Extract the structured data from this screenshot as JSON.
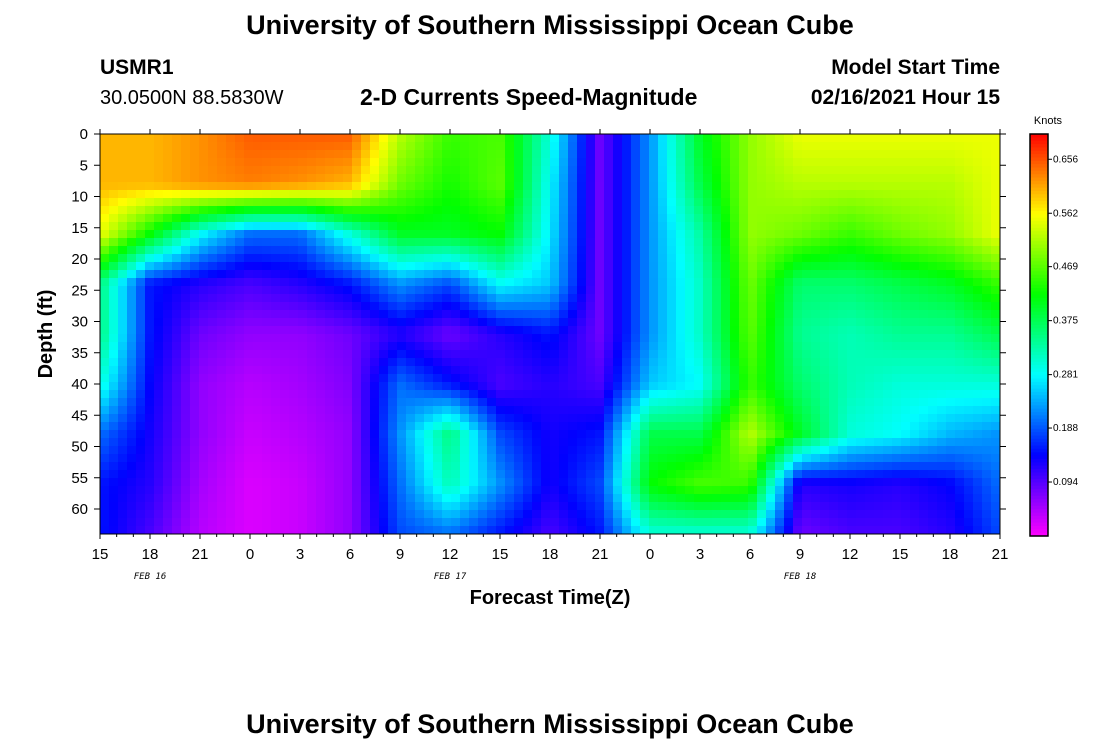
{
  "header": {
    "title": "University of Southern Mississippi Ocean Cube",
    "station": "USMR1",
    "coords": "30.0500N 88.5830W",
    "subtitle": "2-D Currents Speed-Magnitude",
    "model_label": "Model Start Time",
    "model_time": "02/16/2021 Hour 15"
  },
  "footer": {
    "title": "University of Southern Mississippi Ocean Cube"
  },
  "chart_data": {
    "type": "heatmap",
    "xlabel": "Forecast Time(Z)",
    "ylabel": "Depth (ft)",
    "x_ticks": [
      "15",
      "18",
      "21",
      "0",
      "3",
      "6",
      "9",
      "12",
      "15",
      "18",
      "21",
      "0",
      "3",
      "6",
      "9",
      "12",
      "15",
      "18",
      "21"
    ],
    "x_range_hours": [
      0,
      54
    ],
    "date_labels": [
      {
        "text": "FEB 16",
        "tick_index": 1
      },
      {
        "text": "FEB 17",
        "tick_index": 7
      },
      {
        "text": "FEB 18",
        "tick_index": 14
      }
    ],
    "y_ticks": [
      0,
      5,
      10,
      15,
      20,
      25,
      30,
      35,
      40,
      45,
      50,
      55,
      60
    ],
    "y_range": [
      0,
      64
    ],
    "y_inverted": true,
    "colorbar": {
      "label": "Knots",
      "ticks": [
        "0.656",
        "0.562",
        "0.469",
        "0.375",
        "0.281",
        "0.188",
        "0.094"
      ],
      "range": [
        0,
        0.7
      ]
    },
    "depths": [
      0,
      8,
      16,
      24,
      32,
      40,
      48,
      56,
      64
    ],
    "times_hours": [
      0,
      3,
      6,
      9,
      12,
      15,
      18,
      21,
      24,
      27,
      30,
      33,
      36,
      39,
      42,
      45,
      48,
      51,
      54
    ],
    "values": [
      [
        0.6,
        0.6,
        0.62,
        0.65,
        0.65,
        0.65,
        0.52,
        0.45,
        0.46,
        0.3,
        0.08,
        0.22,
        0.4,
        0.5,
        0.55,
        0.55,
        0.55,
        0.55,
        0.55
      ],
      [
        0.6,
        0.6,
        0.62,
        0.63,
        0.62,
        0.6,
        0.48,
        0.43,
        0.47,
        0.28,
        0.08,
        0.22,
        0.38,
        0.5,
        0.52,
        0.52,
        0.52,
        0.52,
        0.55
      ],
      [
        0.55,
        0.42,
        0.28,
        0.2,
        0.2,
        0.3,
        0.4,
        0.4,
        0.42,
        0.27,
        0.08,
        0.22,
        0.33,
        0.5,
        0.48,
        0.45,
        0.48,
        0.5,
        0.55
      ],
      [
        0.35,
        0.15,
        0.12,
        0.1,
        0.12,
        0.15,
        0.22,
        0.18,
        0.28,
        0.25,
        0.08,
        0.22,
        0.31,
        0.48,
        0.36,
        0.36,
        0.38,
        0.4,
        0.45
      ],
      [
        0.35,
        0.15,
        0.08,
        0.06,
        0.06,
        0.08,
        0.12,
        0.08,
        0.12,
        0.15,
        0.08,
        0.22,
        0.31,
        0.47,
        0.34,
        0.32,
        0.34,
        0.34,
        0.38
      ],
      [
        0.3,
        0.14,
        0.06,
        0.04,
        0.05,
        0.07,
        0.2,
        0.15,
        0.1,
        0.12,
        0.1,
        0.25,
        0.28,
        0.45,
        0.36,
        0.32,
        0.3,
        0.3,
        0.3
      ],
      [
        0.2,
        0.13,
        0.06,
        0.03,
        0.04,
        0.06,
        0.22,
        0.35,
        0.18,
        0.13,
        0.15,
        0.38,
        0.38,
        0.52,
        0.4,
        0.3,
        0.28,
        0.24,
        0.22
      ],
      [
        0.15,
        0.12,
        0.05,
        0.02,
        0.03,
        0.06,
        0.2,
        0.32,
        0.22,
        0.13,
        0.18,
        0.42,
        0.46,
        0.45,
        0.12,
        0.13,
        0.12,
        0.14,
        0.2
      ],
      [
        0.15,
        0.1,
        0.04,
        0.02,
        0.03,
        0.06,
        0.18,
        0.2,
        0.15,
        0.1,
        0.15,
        0.3,
        0.3,
        0.3,
        0.08,
        0.1,
        0.1,
        0.12,
        0.18
      ]
    ]
  }
}
